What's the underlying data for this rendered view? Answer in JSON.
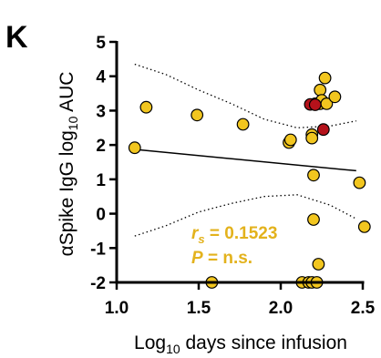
{
  "panel_label": "K",
  "chart_data": {
    "type": "scatter",
    "xlabel": {
      "prefix": "Log",
      "sub": "10",
      "suffix": " days since infusion"
    },
    "ylabel": {
      "prefix": "αSpike IgG log",
      "sub": "10",
      "suffix": " AUC"
    },
    "xlim": [
      1.0,
      2.5
    ],
    "ylim": [
      -2,
      5
    ],
    "xticks": [
      1.0,
      1.5,
      2.0,
      2.5
    ],
    "xtick_labels": [
      "1.0",
      "1.5",
      "2.0",
      "2.5"
    ],
    "yticks": [
      -2,
      -1,
      0,
      1,
      2,
      3,
      4,
      5
    ],
    "ytick_labels": [
      "-2",
      "-1",
      "0",
      "1",
      "2",
      "3",
      "4",
      "5"
    ],
    "grid": false,
    "colors": {
      "gold": "#f2c61f",
      "red": "#b5121b",
      "stat": "#e3b21c",
      "line": "#000000"
    },
    "series": [
      {
        "color_key": "gold",
        "points": [
          [
            1.11,
            1.92
          ],
          [
            1.18,
            3.1
          ],
          [
            1.49,
            2.87
          ],
          [
            1.58,
            -2.0
          ],
          [
            1.77,
            2.6
          ],
          [
            2.05,
            2.07
          ],
          [
            2.06,
            2.15
          ],
          [
            2.13,
            -2.0
          ],
          [
            2.17,
            -2.0
          ],
          [
            2.19,
            -2.0
          ],
          [
            2.19,
            2.3
          ],
          [
            2.19,
            2.2
          ],
          [
            2.2,
            1.12
          ],
          [
            2.2,
            -0.17
          ],
          [
            2.21,
            3.2
          ],
          [
            2.22,
            -2.0
          ],
          [
            2.23,
            -1.47
          ],
          [
            2.24,
            3.2
          ],
          [
            2.24,
            3.6
          ],
          [
            2.25,
            3.3
          ],
          [
            2.27,
            3.95
          ],
          [
            2.28,
            3.2
          ],
          [
            2.33,
            3.4
          ],
          [
            2.48,
            0.9
          ],
          [
            2.51,
            -0.38
          ]
        ]
      },
      {
        "color_key": "red",
        "points": [
          [
            2.18,
            3.18
          ],
          [
            2.21,
            3.17
          ],
          [
            2.26,
            2.45
          ]
        ]
      }
    ],
    "regression_line": {
      "x": [
        1.11,
        2.46
      ],
      "y": [
        1.87,
        1.25
      ]
    },
    "confidence_band": {
      "upper": {
        "x": [
          1.11,
          1.3,
          1.5,
          1.7,
          1.9,
          2.1,
          2.3,
          2.46
        ],
        "y": [
          4.35,
          4.05,
          3.6,
          3.2,
          2.75,
          2.5,
          2.55,
          2.7
        ]
      },
      "lower": {
        "x": [
          1.11,
          1.3,
          1.5,
          1.7,
          1.9,
          2.1,
          2.3,
          2.46
        ],
        "y": [
          -0.65,
          -0.35,
          0.05,
          0.3,
          0.5,
          0.55,
          0.25,
          -0.15
        ]
      }
    },
    "annotations": {
      "rs_symbol": "r",
      "rs_sub": "s",
      "rs_value": " = 0.1523",
      "p_symbol": "P",
      "p_value": " = n.s."
    }
  }
}
